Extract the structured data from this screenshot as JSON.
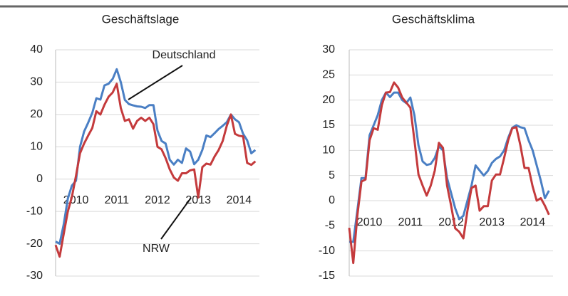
{
  "chart_data": [
    {
      "type": "line",
      "title": "Geschäftslage",
      "x": [
        2009.5,
        2009.6,
        2009.7,
        2009.8,
        2009.9,
        2010.0,
        2010.1,
        2010.2,
        2010.3,
        2010.4,
        2010.5,
        2010.6,
        2010.7,
        2010.8,
        2010.9,
        2011.0,
        2011.1,
        2011.2,
        2011.3,
        2011.4,
        2011.5,
        2011.6,
        2011.7,
        2011.8,
        2011.9,
        2012.0,
        2012.1,
        2012.2,
        2012.3,
        2012.4,
        2012.5,
        2012.6,
        2012.7,
        2012.8,
        2012.9,
        2013.0,
        2013.1,
        2013.2,
        2013.3,
        2013.4,
        2013.5,
        2013.6,
        2013.7,
        2013.8,
        2013.9,
        2014.0,
        2014.1,
        2014.2,
        2014.3,
        2014.4
      ],
      "xlim": [
        2009.5,
        2014.5
      ],
      "xticks": [
        2010,
        2011,
        2012,
        2013,
        2014
      ],
      "ylim": [
        -30,
        40
      ],
      "yticks": [
        -30,
        -20,
        -10,
        0,
        10,
        20,
        30,
        40
      ],
      "grid": true,
      "series": [
        {
          "name": "Deutschland",
          "color": "#4a7fc4",
          "values": [
            -19.3,
            -20,
            -14,
            -6,
            -2,
            -0.5,
            10,
            14.7,
            17.5,
            20.5,
            25,
            24.6,
            29,
            29.5,
            31,
            34,
            30,
            24.5,
            23.2,
            22.8,
            22.5,
            22.4,
            22,
            22.9,
            22.9,
            15,
            11.8,
            11,
            6,
            4.5,
            6,
            5,
            9.5,
            8.5,
            4.6,
            6,
            9,
            13.5,
            13,
            14.2,
            15.5,
            16.5,
            17.6,
            20,
            18.5,
            17.6,
            14,
            12,
            8,
            9
          ]
        },
        {
          "name": "NRW",
          "color": "#c43a3c",
          "values": [
            -20.4,
            -24,
            -17,
            -10,
            -5.5,
            1,
            8,
            11,
            13.5,
            15.8,
            21,
            20,
            23,
            25.5,
            26.8,
            29.5,
            22,
            18,
            18.5,
            15.6,
            18,
            19,
            18,
            19,
            17,
            10,
            9.2,
            6.5,
            3,
            0.5,
            -0.5,
            1.8,
            1.8,
            2.7,
            3,
            -5.7,
            3.7,
            4.8,
            4.5,
            7,
            9,
            11.8,
            16.5,
            20,
            14,
            13.4,
            13.2,
            5,
            4.4,
            5.5
          ]
        }
      ]
    },
    {
      "type": "line",
      "title": "Geschäftsklima",
      "x": [
        2009.5,
        2009.6,
        2009.7,
        2009.8,
        2009.9,
        2010.0,
        2010.1,
        2010.2,
        2010.3,
        2010.4,
        2010.5,
        2010.6,
        2010.7,
        2010.8,
        2010.9,
        2011.0,
        2011.1,
        2011.2,
        2011.3,
        2011.4,
        2011.5,
        2011.6,
        2011.7,
        2011.8,
        2011.9,
        2012.0,
        2012.1,
        2012.2,
        2012.3,
        2012.4,
        2012.5,
        2012.6,
        2012.7,
        2012.8,
        2012.9,
        2013.0,
        2013.1,
        2013.2,
        2013.3,
        2013.4,
        2013.5,
        2013.6,
        2013.7,
        2013.8,
        2013.9,
        2014.0,
        2014.1,
        2014.2,
        2014.3,
        2014.4
      ],
      "xlim": [
        2009.5,
        2014.5
      ],
      "xticks": [
        2010,
        2011,
        2012,
        2013,
        2014
      ],
      "ylim": [
        -15,
        30
      ],
      "yticks": [
        -15,
        -10,
        -5,
        0,
        5,
        10,
        15,
        20,
        25,
        30
      ],
      "grid": true,
      "series": [
        {
          "color": "#4a7fc4",
          "values": [
            -8.2,
            -8.2,
            -2,
            4.5,
            4.5,
            13,
            15,
            17,
            20,
            21.5,
            20.6,
            21.5,
            21.5,
            20,
            19.4,
            20.5,
            17,
            11,
            7.8,
            7.1,
            7.3,
            8.5,
            10.8,
            10,
            4.5,
            1.5,
            -1.5,
            -3.7,
            -3,
            0,
            3,
            7,
            6,
            5,
            5.9,
            7.5,
            8.3,
            8.8,
            10,
            12.5,
            14.5,
            15,
            14.6,
            14.4,
            12,
            10,
            7,
            4,
            0.5,
            2
          ]
        },
        {
          "color": "#c43a3c",
          "values": [
            -5.4,
            -12.4,
            -3,
            3.8,
            4.2,
            12,
            14.4,
            14.1,
            19,
            21.5,
            21.6,
            23.5,
            22.5,
            20.5,
            19.5,
            18.5,
            12,
            5.2,
            3,
            1,
            3,
            6,
            11.5,
            10.5,
            3,
            -1,
            -5.5,
            -6.2,
            -7.5,
            -2,
            2.5,
            3,
            -2,
            -1.1,
            -1.1,
            4,
            5.2,
            5.2,
            8.5,
            12,
            14.4,
            14.6,
            11,
            6.5,
            6.5,
            2.8,
            0,
            0.5,
            -1,
            -2.8
          ]
        }
      ]
    }
  ]
}
